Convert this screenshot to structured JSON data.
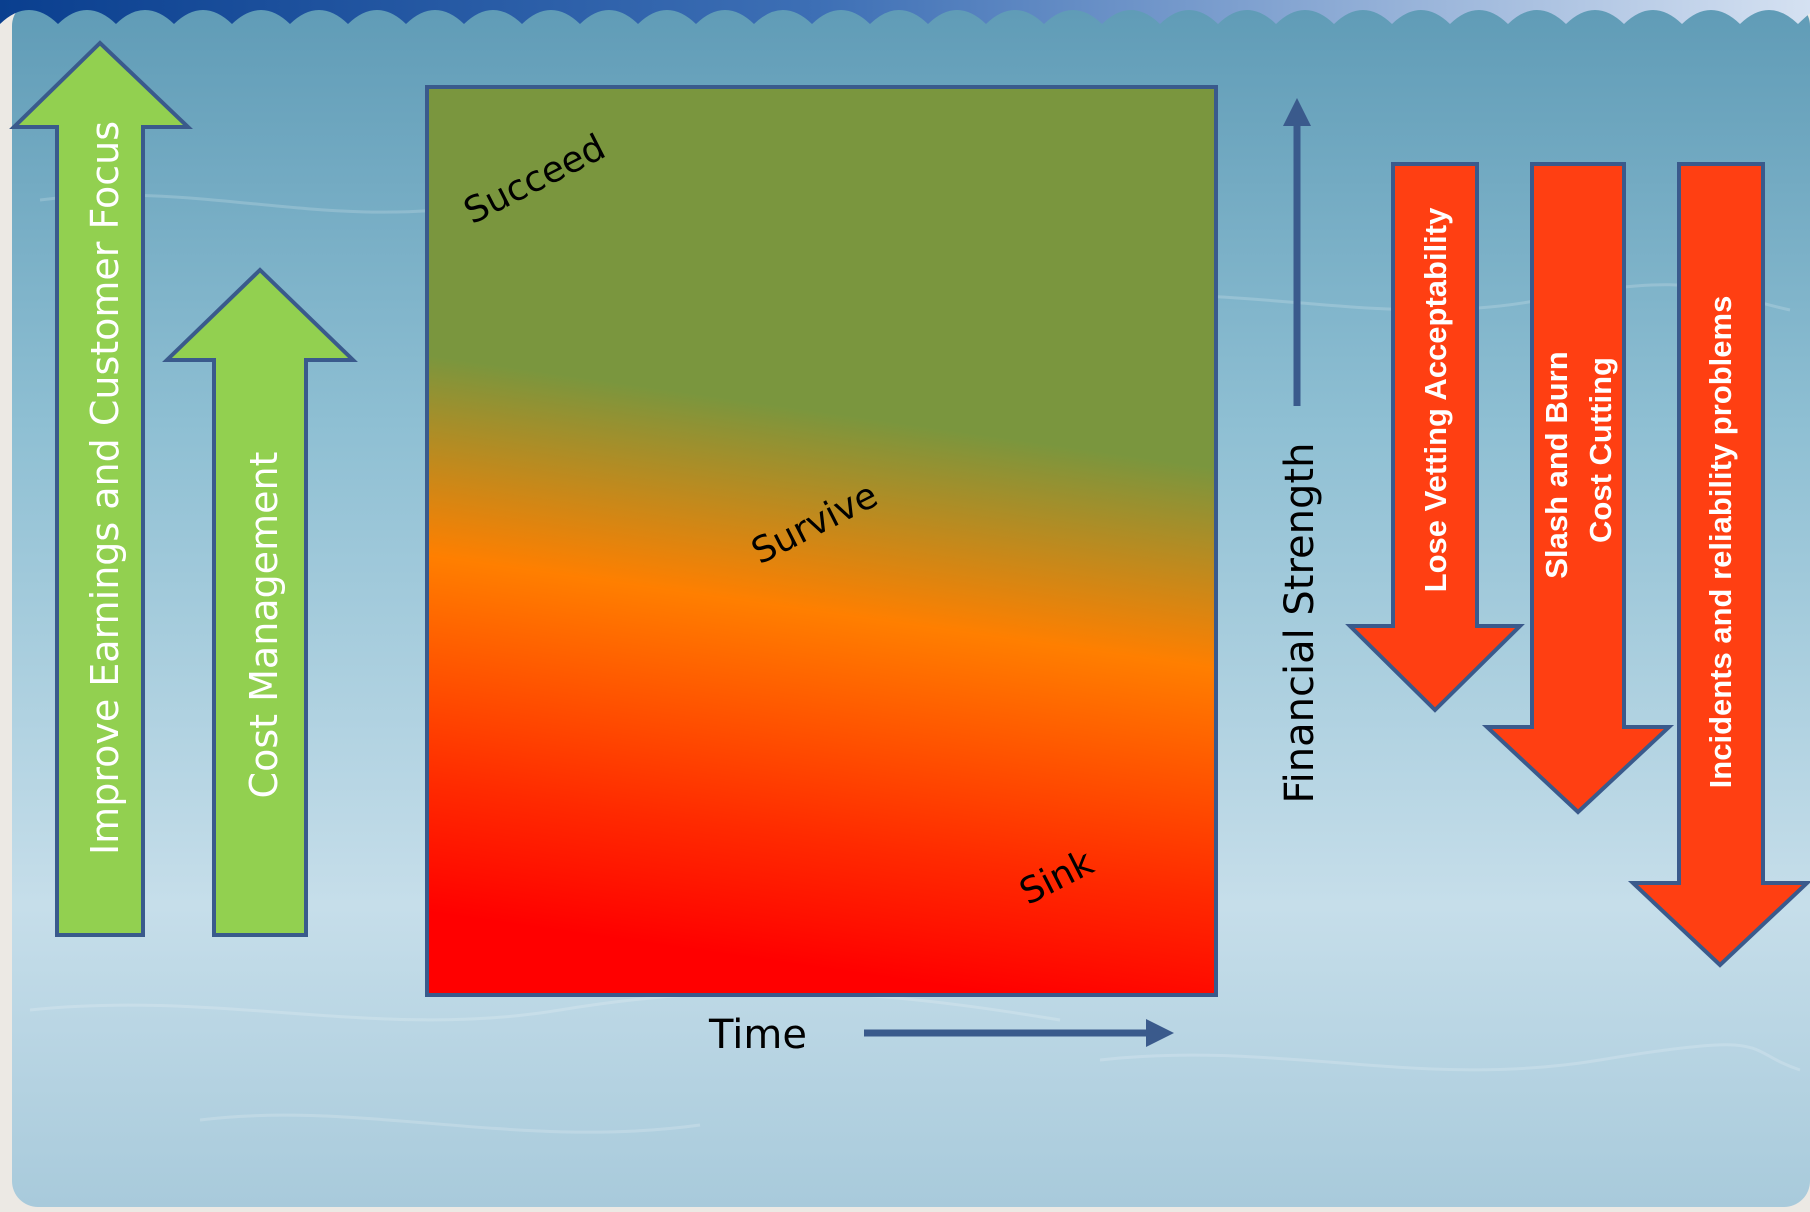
{
  "up_arrows": [
    {
      "label": "Improve Earnings and Customer Focus",
      "color": "#92d050"
    },
    {
      "label": "Cost Management",
      "color": "#92d050"
    }
  ],
  "down_arrows": [
    {
      "lines": [
        "Lose Vetting Acceptability"
      ],
      "color": "#ff3f12"
    },
    {
      "lines": [
        "Slash and Burn",
        "Cost Cutting"
      ],
      "color": "#ff3f12"
    },
    {
      "lines": [
        "Incidents and reliability problems"
      ],
      "color": "#ff3f12"
    }
  ],
  "zones": {
    "succeed": "Succeed",
    "survive": "Survive",
    "sink": "Sink"
  },
  "axes": {
    "x_label": "Time",
    "y_label": "Financial Strength"
  },
  "colors": {
    "succeed_green": "#7a963e",
    "survive_orange": "#ff7f00",
    "sink_red": "#ff0000",
    "outline_blue": "#3a5a8c",
    "arrow_green": "#92d050",
    "arrow_red": "#ff3f12",
    "sea_light": "#cfe3ec",
    "sea_dark": "#7fb3c8"
  }
}
